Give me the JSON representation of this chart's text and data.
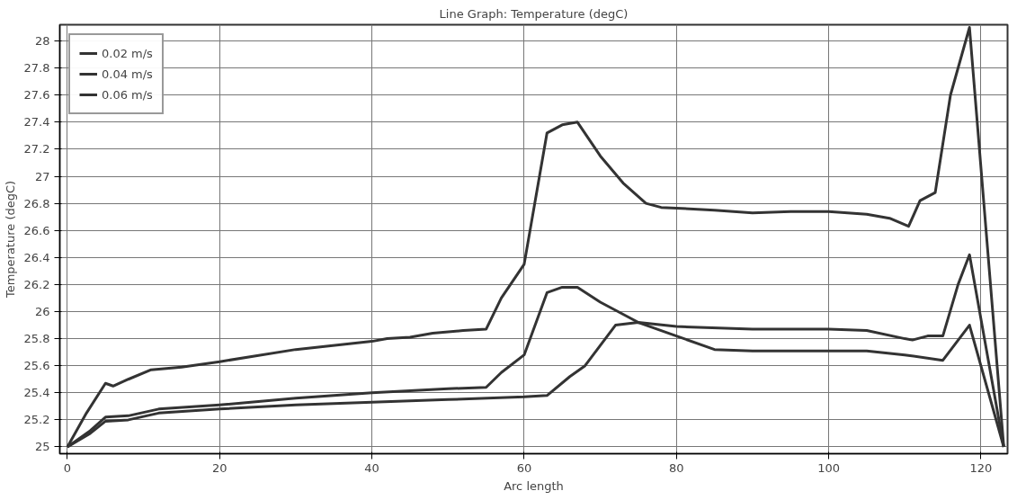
{
  "chart_data": {
    "type": "line",
    "title": "Line Graph: Temperature (degC)",
    "xlabel": "Arc length",
    "ylabel": "Temperature (degC)",
    "xlim": [
      -1,
      123.5
    ],
    "ylim": [
      24.95,
      28.12
    ],
    "xticks": [
      0,
      20,
      40,
      60,
      80,
      100,
      120
    ],
    "yticks": [
      25,
      25.2,
      25.4,
      25.6,
      25.8,
      26,
      26.2,
      26.4,
      26.6,
      26.8,
      27,
      27.2,
      27.4,
      27.6,
      27.8,
      28
    ],
    "grid": true,
    "legend": "top left",
    "line_style": "solid",
    "series": [
      {
        "name": "0.02 m/s",
        "color": "#333333",
        "x": [
          0,
          2.5,
          5,
          6,
          8,
          11,
          15,
          20,
          30,
          40,
          42,
          45,
          48,
          52,
          55,
          57,
          60,
          63,
          65,
          67,
          70,
          73,
          76,
          78,
          85,
          90,
          95,
          100,
          105,
          108,
          110.5,
          112,
          114,
          116,
          118.5,
          123
        ],
        "values": [
          25.0,
          25.25,
          25.47,
          25.45,
          25.5,
          25.57,
          25.59,
          25.63,
          25.72,
          25.78,
          25.8,
          25.81,
          25.84,
          25.86,
          25.87,
          26.1,
          26.35,
          27.32,
          27.38,
          27.4,
          27.15,
          26.95,
          26.8,
          26.77,
          26.75,
          26.73,
          26.74,
          26.74,
          26.72,
          26.69,
          26.63,
          26.82,
          26.88,
          27.6,
          28.1,
          25.0
        ]
      },
      {
        "name": "0.04 m/s",
        "color": "#333333",
        "x": [
          0,
          3,
          5,
          8,
          12,
          20,
          30,
          40,
          50,
          55,
          57,
          60,
          63,
          65,
          67,
          70,
          75,
          80,
          85,
          90,
          100,
          105,
          110,
          115,
          118.5,
          123
        ],
        "values": [
          25.0,
          25.12,
          25.22,
          25.23,
          25.28,
          25.31,
          25.36,
          25.4,
          25.43,
          25.44,
          25.55,
          25.68,
          26.14,
          26.18,
          26.18,
          26.07,
          25.92,
          25.82,
          25.72,
          25.71,
          25.71,
          25.71,
          25.68,
          25.64,
          25.9,
          25.0
        ]
      },
      {
        "name": "0.06 m/s",
        "color": "#333333",
        "x": [
          0,
          3,
          5,
          8,
          12,
          20,
          30,
          40,
          50,
          60,
          63,
          66,
          68,
          72,
          75,
          80,
          90,
          100,
          105,
          110,
          111,
          113,
          115,
          117,
          118.5,
          123
        ],
        "values": [
          25.0,
          25.1,
          25.19,
          25.2,
          25.25,
          25.28,
          25.31,
          25.33,
          25.35,
          25.37,
          25.38,
          25.52,
          25.6,
          25.9,
          25.92,
          25.89,
          25.87,
          25.87,
          25.86,
          25.8,
          25.79,
          25.82,
          25.82,
          26.2,
          26.42,
          25.0
        ]
      }
    ]
  }
}
